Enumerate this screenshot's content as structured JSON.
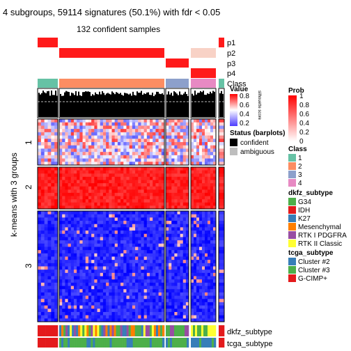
{
  "chart_data": {
    "type": "heatmap",
    "title": "4 subgroups, 59114 signatures (50.1%) with fdr < 0.05",
    "subtitle": "132 confident samples",
    "ylabel": "k-means with 3 groups",
    "row_groups": [
      {
        "label": "1",
        "rows": 14,
        "tone": "mixed"
      },
      {
        "label": "2",
        "rows": 13,
        "tone": "high"
      },
      {
        "label": "3",
        "rows": 34,
        "tone": "low"
      }
    ],
    "column_groups": [
      {
        "class": "1",
        "cols": 6
      },
      {
        "class": "2",
        "cols": 36
      },
      {
        "class": "3",
        "cols": 8
      },
      {
        "class": "4",
        "cols": 9
      },
      {
        "class": "1",
        "cols": 1
      }
    ],
    "top_tracks": [
      "p1",
      "p2",
      "p3",
      "p4",
      "Class"
    ],
    "silhouette_label": "silhouette score",
    "bottom_tracks": [
      "dkfz_subtype",
      "tcga_subtype"
    ],
    "legends": {
      "prob": {
        "title": "Prob",
        "ticks": [
          "1",
          "0.8",
          "0.6",
          "0.4",
          "0.2",
          "0"
        ]
      },
      "value": {
        "title": "Value",
        "ticks": [
          "0.8",
          "0.6",
          "0.4",
          "0.2"
        ]
      },
      "status": {
        "title": "Status (barplots)",
        "items": [
          {
            "label": "confident",
            "color": "#000000"
          },
          {
            "label": "ambiguous",
            "color": "#bebebe"
          }
        ]
      },
      "class": {
        "title": "Class",
        "items": [
          {
            "label": "1",
            "color": "#66c2a5"
          },
          {
            "label": "2",
            "color": "#fc8d62"
          },
          {
            "label": "3",
            "color": "#8da0cb"
          },
          {
            "label": "4",
            "color": "#e78ac3"
          }
        ]
      },
      "dkfz_subtype": {
        "title": "dkfz_subtype",
        "items": [
          {
            "label": "G34",
            "color": "#4daf4a"
          },
          {
            "label": "IDH",
            "color": "#e41a1c"
          },
          {
            "label": "K27",
            "color": "#377eb8"
          },
          {
            "label": "Mesenchymal",
            "color": "#ff7f00"
          },
          {
            "label": "RTK I PDGFRA",
            "color": "#984ea3"
          },
          {
            "label": "RTK II Classic",
            "color": "#ffff33"
          }
        ]
      },
      "tcga_subtype": {
        "title": "tcga_subtype",
        "items": [
          {
            "label": "Cluster #2",
            "color": "#377eb8"
          },
          {
            "label": "Cluster #3",
            "color": "#4daf4a"
          },
          {
            "label": "G-CIMP+",
            "color": "#e41a1c"
          }
        ]
      }
    }
  }
}
